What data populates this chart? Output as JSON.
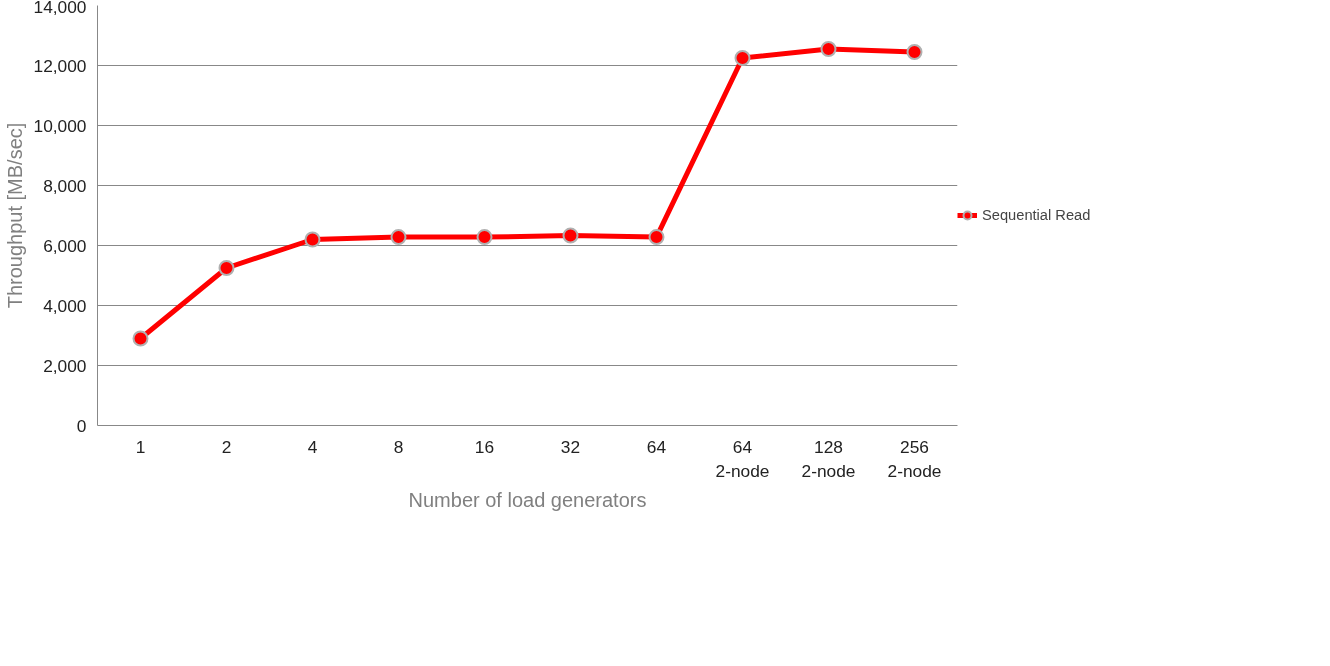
{
  "chart_data": {
    "type": "line",
    "ylabel": "Throughput [MB/sec]",
    "xlabel": "Number of load generators",
    "categories": [
      "1",
      "2",
      "4",
      "8",
      "16",
      "32",
      "64",
      "64\n2-node",
      "128\n2-node",
      "256\n2-node"
    ],
    "series": [
      {
        "name": "Sequential Read",
        "color": "#ff0000",
        "values": [
          2900,
          5250,
          6200,
          6280,
          6280,
          6330,
          6280,
          12250,
          12550,
          12450
        ]
      }
    ],
    "ylim": [
      0,
      14000
    ],
    "yticks": [
      {
        "value": 0,
        "label": "0"
      },
      {
        "value": 2000,
        "label": "2,000"
      },
      {
        "value": 4000,
        "label": "4,000"
      },
      {
        "value": 6000,
        "label": "6,000"
      },
      {
        "value": 8000,
        "label": "8,000"
      },
      {
        "value": 10000,
        "label": "10,000"
      },
      {
        "value": 12000,
        "label": "12,000"
      },
      {
        "value": 14000,
        "label": "14,000"
      }
    ],
    "grid": "y",
    "legend": "right",
    "marker": "circle"
  }
}
